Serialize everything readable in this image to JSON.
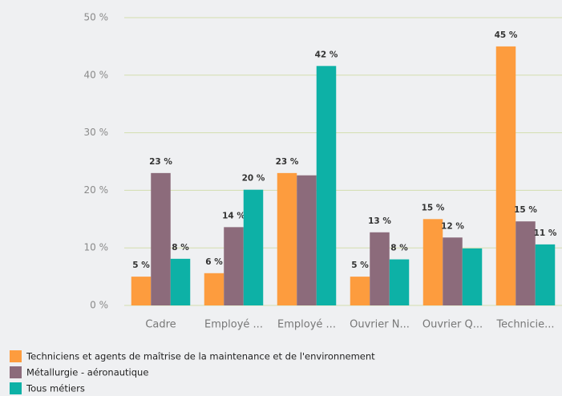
{
  "chart_data": {
    "type": "bar",
    "categories": [
      "Cadre",
      "Employé ...",
      "Employé ...",
      "Ouvrier N...",
      "Ouvrier Q...",
      "Technicie..."
    ],
    "series": [
      {
        "name": "Techniciens et agents de maîtrise de la maintenance et de l'environnement",
        "color": "#fd9c3e",
        "values": [
          5,
          5.6,
          23,
          5,
          15,
          45
        ],
        "value_labels": [
          "5 %",
          "6 %",
          "23 %",
          "5 %",
          "15 %",
          "45 %"
        ]
      },
      {
        "name": "Métallurgie - aéronautique",
        "color": "#8c6b7b",
        "values": [
          23,
          13.6,
          22.6,
          12.7,
          11.8,
          14.6
        ],
        "value_labels": [
          "23 %",
          "14 %",
          null,
          "13 %",
          "12 %",
          "15 %"
        ]
      },
      {
        "name": "Tous métiers",
        "color": "#0db1a6",
        "values": [
          8.1,
          20.1,
          41.6,
          8,
          9.9,
          10.6
        ],
        "value_labels": [
          "8 %",
          "20 %",
          "42 %",
          "8 %",
          null,
          "11 %"
        ]
      }
    ],
    "ylim": [
      0,
      50
    ],
    "yticks": [
      {
        "value": 0,
        "label": "0 %"
      },
      {
        "value": 10,
        "label": "10 %"
      },
      {
        "value": 20,
        "label": "20 %"
      },
      {
        "value": 30,
        "label": "30 %"
      },
      {
        "value": 40,
        "label": "40 %"
      },
      {
        "value": 50,
        "label": "50 %"
      }
    ],
    "grid": true
  }
}
